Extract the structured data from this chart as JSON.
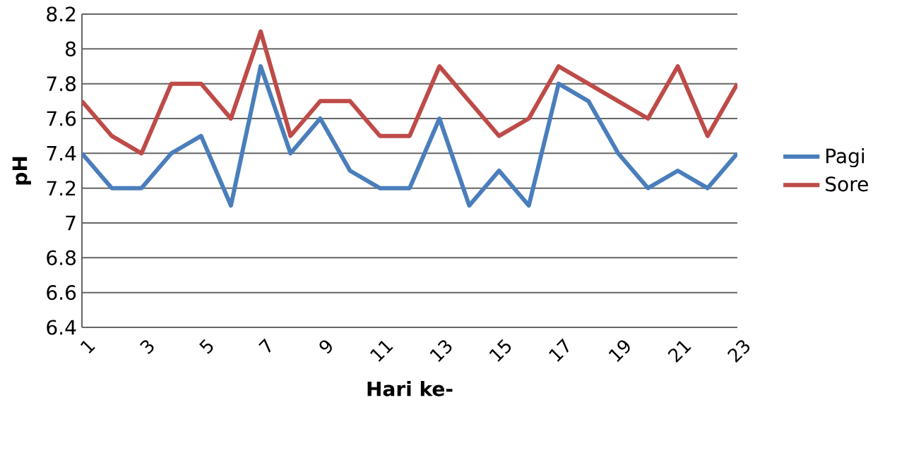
{
  "chart_data": {
    "type": "line",
    "xlabel": "Hari ke-",
    "ylabel": "pH",
    "categories": [
      "1",
      null,
      "3",
      null,
      "5",
      null,
      "7",
      null,
      "9",
      null,
      "11",
      null,
      "13",
      null,
      "15",
      null,
      "17",
      null,
      "19",
      null,
      "21",
      null,
      "23"
    ],
    "series": [
      {
        "name": "Pagi",
        "color": "#4a7ebb",
        "values": [
          7.4,
          7.2,
          7.2,
          7.4,
          7.5,
          7.1,
          7.9,
          7.4,
          7.6,
          7.3,
          7.2,
          7.2,
          7.6,
          7.1,
          7.3,
          7.1,
          7.8,
          7.7,
          7.4,
          7.2,
          7.3,
          7.2,
          7.4
        ]
      },
      {
        "name": "Sore",
        "color": "#be4b48",
        "values": [
          7.7,
          7.5,
          7.4,
          7.8,
          7.8,
          7.6,
          8.1,
          7.5,
          7.7,
          7.7,
          7.5,
          7.5,
          7.9,
          7.7,
          7.5,
          7.6,
          7.9,
          7.8,
          7.7,
          7.6,
          7.9,
          7.5,
          7.8
        ]
      }
    ],
    "ylim": [
      6.4,
      8.2
    ],
    "yticks": [
      6.4,
      6.6,
      6.8,
      7,
      7.2,
      7.4,
      7.6,
      7.8,
      8,
      8.2
    ],
    "grid": "y",
    "legend": "right",
    "marker": "none",
    "line_style": "solid"
  }
}
